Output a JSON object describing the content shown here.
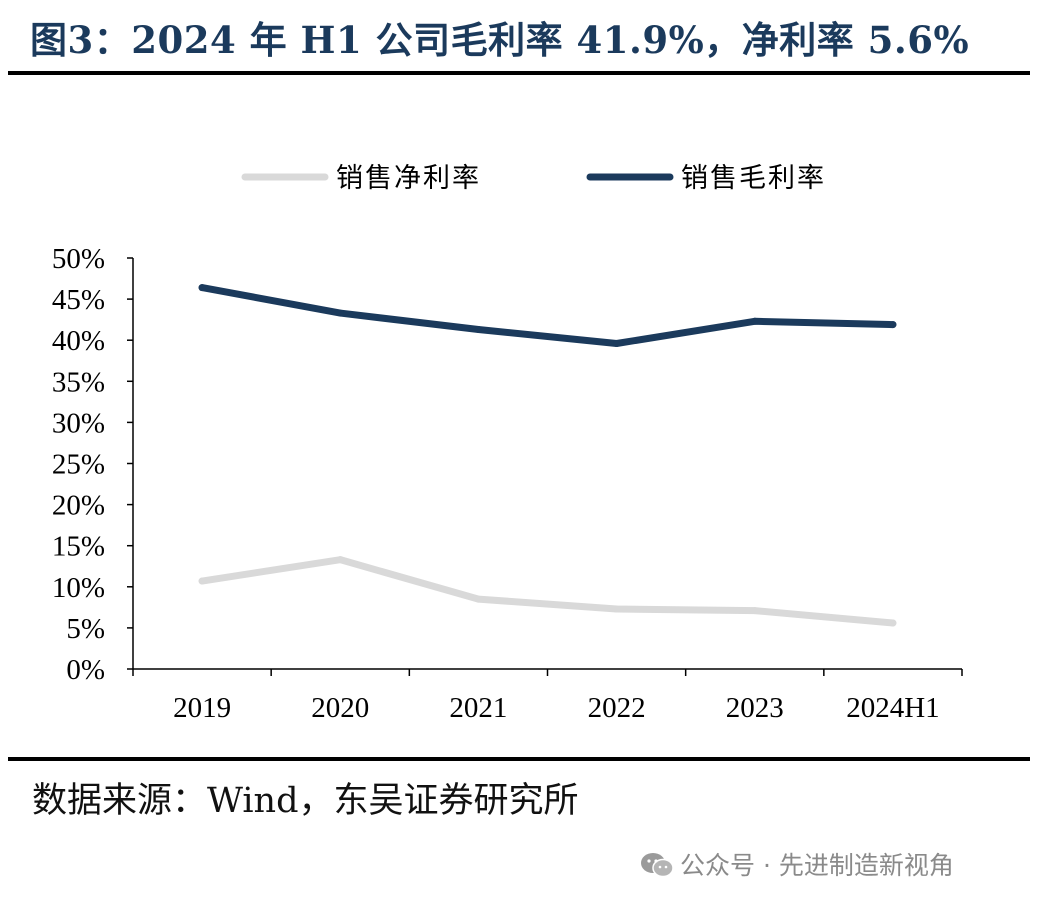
{
  "header": {
    "title": "图3：2024 年 H1 公司毛利率 41.9%，净利率 5.6%"
  },
  "footer": {
    "source": "数据来源：Wind，东吴证券研究所",
    "watermark": "公众号 · 先进制造新视角"
  },
  "chart_data": {
    "type": "line",
    "title": "",
    "xlabel": "",
    "ylabel": "",
    "categories": [
      "2019",
      "2020",
      "2021",
      "2022",
      "2023",
      "2024H1"
    ],
    "ylim": [
      0,
      50
    ],
    "y_ticks": [
      "0%",
      "5%",
      "10%",
      "15%",
      "20%",
      "25%",
      "30%",
      "35%",
      "40%",
      "45%",
      "50%"
    ],
    "legend_position": "top",
    "grid": false,
    "series": [
      {
        "name": "销售净利率",
        "color": "#d9d9d9",
        "values": [
          10.7,
          13.3,
          8.5,
          7.3,
          7.1,
          5.6
        ]
      },
      {
        "name": "销售毛利率",
        "color": "#1b3a5c",
        "values": [
          46.4,
          43.3,
          41.3,
          39.6,
          42.3,
          41.9
        ]
      }
    ]
  },
  "colors": {
    "title": "#1b3a5c",
    "rules": "#000000"
  }
}
